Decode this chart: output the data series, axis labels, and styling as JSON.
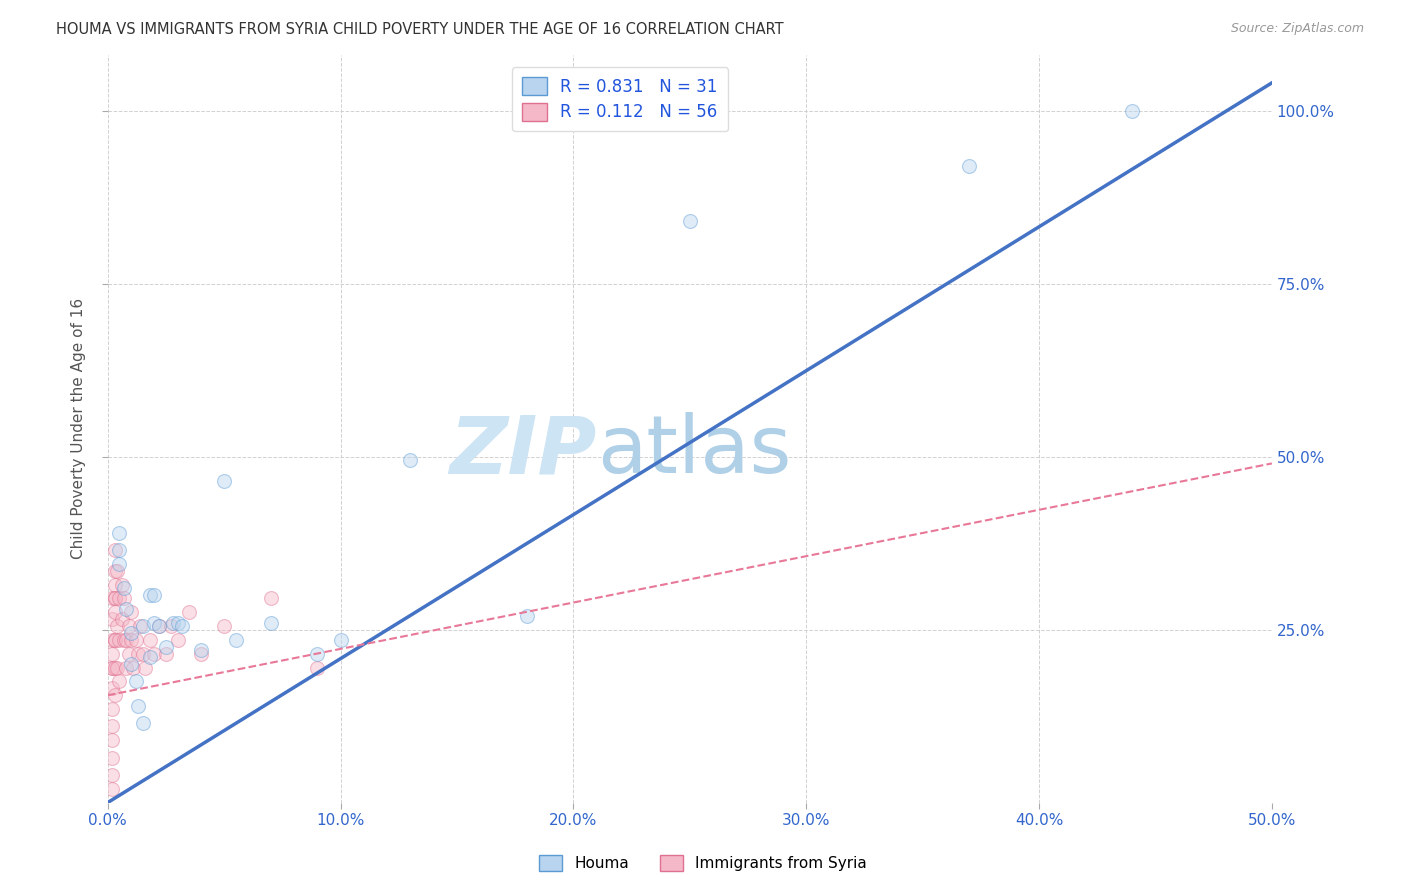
{
  "title": "HOUMA VS IMMIGRANTS FROM SYRIA CHILD POVERTY UNDER THE AGE OF 16 CORRELATION CHART",
  "source": "Source: ZipAtlas.com",
  "ylabel": "Child Poverty Under the Age of 16",
  "xlim": [
    0.0,
    0.5
  ],
  "ylim": [
    0.0,
    1.08
  ],
  "xtick_vals": [
    0.0,
    0.1,
    0.2,
    0.3,
    0.4,
    0.5
  ],
  "xtick_labels": [
    "0.0%",
    "10.0%",
    "20.0%",
    "30.0%",
    "40.0%",
    "50.0%"
  ],
  "ytick_vals": [
    0.25,
    0.5,
    0.75,
    1.0
  ],
  "ytick_labels": [
    "25.0%",
    "50.0%",
    "75.0%",
    "100.0%"
  ],
  "legend_houma_R": "0.831",
  "legend_houma_N": "31",
  "legend_syria_R": "0.112",
  "legend_syria_N": "56",
  "houma_face": "#b8d4ee",
  "houma_edge": "#5b9bd5",
  "syria_face": "#f5b8c8",
  "syria_edge": "#e07090",
  "houma_line_color": "#4472c4",
  "syria_line_color": "#e87898",
  "watermark_zip_color": "#cde4f5",
  "watermark_atlas_color": "#b0d0e8",
  "bg_color": "#ffffff",
  "grid_color": "#cccccc",
  "title_color": "#333333",
  "axis_label_color": "#555555",
  "tick_color": "#3366cc",
  "houma_pts_x": [
    0.005,
    0.005,
    0.005,
    0.007,
    0.008,
    0.01,
    0.01,
    0.012,
    0.013,
    0.015,
    0.015,
    0.018,
    0.018,
    0.02,
    0.02,
    0.022,
    0.025,
    0.028,
    0.03,
    0.032,
    0.04,
    0.05,
    0.055,
    0.07,
    0.09,
    0.1,
    0.13,
    0.18,
    0.25,
    0.37,
    0.44
  ],
  "houma_pts_y": [
    0.365,
    0.39,
    0.345,
    0.31,
    0.28,
    0.245,
    0.2,
    0.175,
    0.14,
    0.115,
    0.255,
    0.21,
    0.3,
    0.26,
    0.3,
    0.255,
    0.225,
    0.26,
    0.26,
    0.255,
    0.22,
    0.465,
    0.235,
    0.26,
    0.215,
    0.235,
    0.495,
    0.27,
    0.84,
    0.92,
    1.0
  ],
  "syria_pts_x": [
    0.002,
    0.002,
    0.002,
    0.002,
    0.002,
    0.002,
    0.002,
    0.002,
    0.002,
    0.002,
    0.002,
    0.002,
    0.002,
    0.003,
    0.003,
    0.003,
    0.003,
    0.003,
    0.003,
    0.003,
    0.003,
    0.003,
    0.003,
    0.004,
    0.004,
    0.004,
    0.005,
    0.005,
    0.005,
    0.006,
    0.006,
    0.007,
    0.007,
    0.008,
    0.008,
    0.009,
    0.009,
    0.01,
    0.01,
    0.011,
    0.012,
    0.013,
    0.014,
    0.015,
    0.016,
    0.018,
    0.02,
    0.022,
    0.025,
    0.027,
    0.03,
    0.035,
    0.04,
    0.05,
    0.07,
    0.09
  ],
  "syria_pts_y": [
    0.195,
    0.165,
    0.135,
    0.11,
    0.09,
    0.065,
    0.04,
    0.02,
    0.195,
    0.215,
    0.235,
    0.265,
    0.295,
    0.315,
    0.335,
    0.295,
    0.235,
    0.195,
    0.155,
    0.365,
    0.275,
    0.235,
    0.295,
    0.335,
    0.195,
    0.255,
    0.295,
    0.235,
    0.175,
    0.315,
    0.265,
    0.235,
    0.295,
    0.235,
    0.195,
    0.255,
    0.215,
    0.235,
    0.275,
    0.195,
    0.235,
    0.215,
    0.255,
    0.215,
    0.195,
    0.235,
    0.215,
    0.255,
    0.215,
    0.255,
    0.235,
    0.275,
    0.215,
    0.255,
    0.295,
    0.195
  ],
  "houma_line_x": [
    0.0,
    0.5
  ],
  "houma_line_y": [
    0.0,
    1.04
  ],
  "syria_line_x": [
    0.0,
    0.5
  ],
  "syria_line_y": [
    0.155,
    0.49
  ],
  "marker_size": 100,
  "marker_alpha": 0.45
}
